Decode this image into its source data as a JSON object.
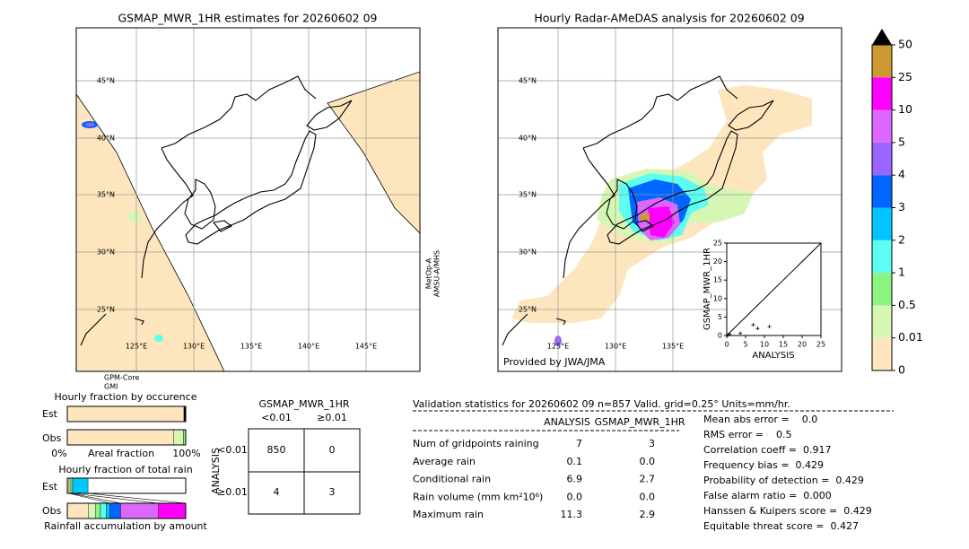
{
  "left_map": {
    "title": "GSMAP_MWR_1HR estimates for 20260602 09",
    "lat_labels": [
      "45°N",
      "40°N",
      "35°N",
      "30°N",
      "25°N"
    ],
    "lon_labels": [
      "125°E",
      "130°E",
      "135°E",
      "140°E",
      "145°E"
    ],
    "sensor_right": [
      "MetOp-A",
      "AMSU-A/MHS"
    ],
    "sensor_bottom": [
      "GPM-Core",
      "GMI"
    ]
  },
  "right_map": {
    "title": "Hourly Radar-AMeDAS analysis for 20260602 09",
    "lat_labels": [
      "45°N",
      "40°N",
      "35°N",
      "30°N",
      "25°N"
    ],
    "lon_labels": [
      "125°E",
      "130°E",
      "135°E"
    ],
    "credit": "Provided by JWA/JMA"
  },
  "chart_data": {
    "type": "scatter",
    "x_label": "ANALYSIS",
    "y_label": "GSMAP_MWR_1HR",
    "x": [
      0.3,
      0.8,
      3.6,
      7.0,
      8.2,
      11.3
    ],
    "y": [
      0.1,
      0.3,
      0.6,
      2.9,
      1.9,
      2.4
    ],
    "xlim": [
      0,
      25
    ],
    "ylim": [
      0,
      25
    ],
    "xticks": [
      0,
      5,
      10,
      15,
      20,
      25
    ],
    "yticks": [
      0,
      5,
      10,
      15,
      20,
      25
    ],
    "color": "#000000"
  },
  "colorbar": {
    "levels": [
      0,
      0.01,
      0.5,
      1,
      2,
      3,
      4,
      5,
      10,
      25,
      50
    ],
    "colors": [
      "#fde6bd",
      "#d6f7b4",
      "#8cf47f",
      "#5cfdf2",
      "#00c6ff",
      "#0066ff",
      "#9966ff",
      "#dd66ff",
      "#ff00ff",
      "#cc9933"
    ],
    "over_color": "#000000"
  },
  "occurrence": {
    "title": "Hourly fraction by occurence",
    "rows": [
      "Est",
      "Obs"
    ],
    "x_label": "Areal fraction",
    "x_min_label": "0%",
    "x_max_label": "100%",
    "est": [
      98.5,
      1.5
    ],
    "est_colors": [
      "#fde6bd",
      "#000000"
    ],
    "obs": [
      90,
      8,
      2
    ],
    "obs_colors": [
      "#fde6bd",
      "#d6f7b4",
      "#8cf47f"
    ]
  },
  "total_rain": {
    "title": "Hourly fraction of total rain",
    "rows": [
      "Est",
      "Obs"
    ],
    "x_label": "Rainfall accumulation by amount",
    "est": [
      1.5,
      1.5,
      1.5,
      13
    ],
    "est_colors": [
      "#fde6bd",
      "#d6f7b4",
      "#8cf47f",
      "#00c6ff"
    ],
    "obs": [
      18,
      6,
      4,
      5,
      3,
      9,
      32,
      23
    ],
    "obs_colors": [
      "#fde6bd",
      "#d6f7b4",
      "#8cf47f",
      "#5cfdf2",
      "#00c6ff",
      "#0066ff",
      "#dd66ff",
      "#ff00ff"
    ]
  },
  "contingency": {
    "title": "GSMAP_MWR_1HR",
    "col_headers": [
      "<0.01",
      "≥0.01"
    ],
    "row_axis": "ANALYSIS",
    "row_headers": [
      "<0.01",
      "≥0.01"
    ],
    "cells": [
      [
        "850",
        "0"
      ],
      [
        "4",
        "3"
      ]
    ]
  },
  "validation": {
    "header": "Validation statistics for 20260602 09  n=857 Valid. grid=0.25° Units=mm/hr.",
    "columns": [
      "ANALYSIS",
      "GSMAP_MWR_1HR"
    ],
    "rows": [
      {
        "label": "Num of gridpoints raining",
        "values": [
          "7",
          "3"
        ]
      },
      {
        "label": "Average rain",
        "values": [
          "0.1",
          "0.0"
        ]
      },
      {
        "label": "Conditional rain",
        "values": [
          "6.9",
          "2.7"
        ]
      },
      {
        "label": "Rain volume (mm km²10⁶)",
        "values": [
          "0.0",
          "0.0"
        ]
      },
      {
        "label": "Maximum rain",
        "values": [
          "11.3",
          "2.9"
        ]
      }
    ],
    "scores": [
      "Mean abs error =    0.0",
      "RMS error =    0.5",
      "Correlation coeff =  0.917",
      "Frequency bias =  0.429",
      "Probability of detection =  0.429",
      "False alarm ratio =  0.000",
      "Hanssen & Kuipers score =  0.429",
      "Equitable threat score =  0.427"
    ]
  }
}
